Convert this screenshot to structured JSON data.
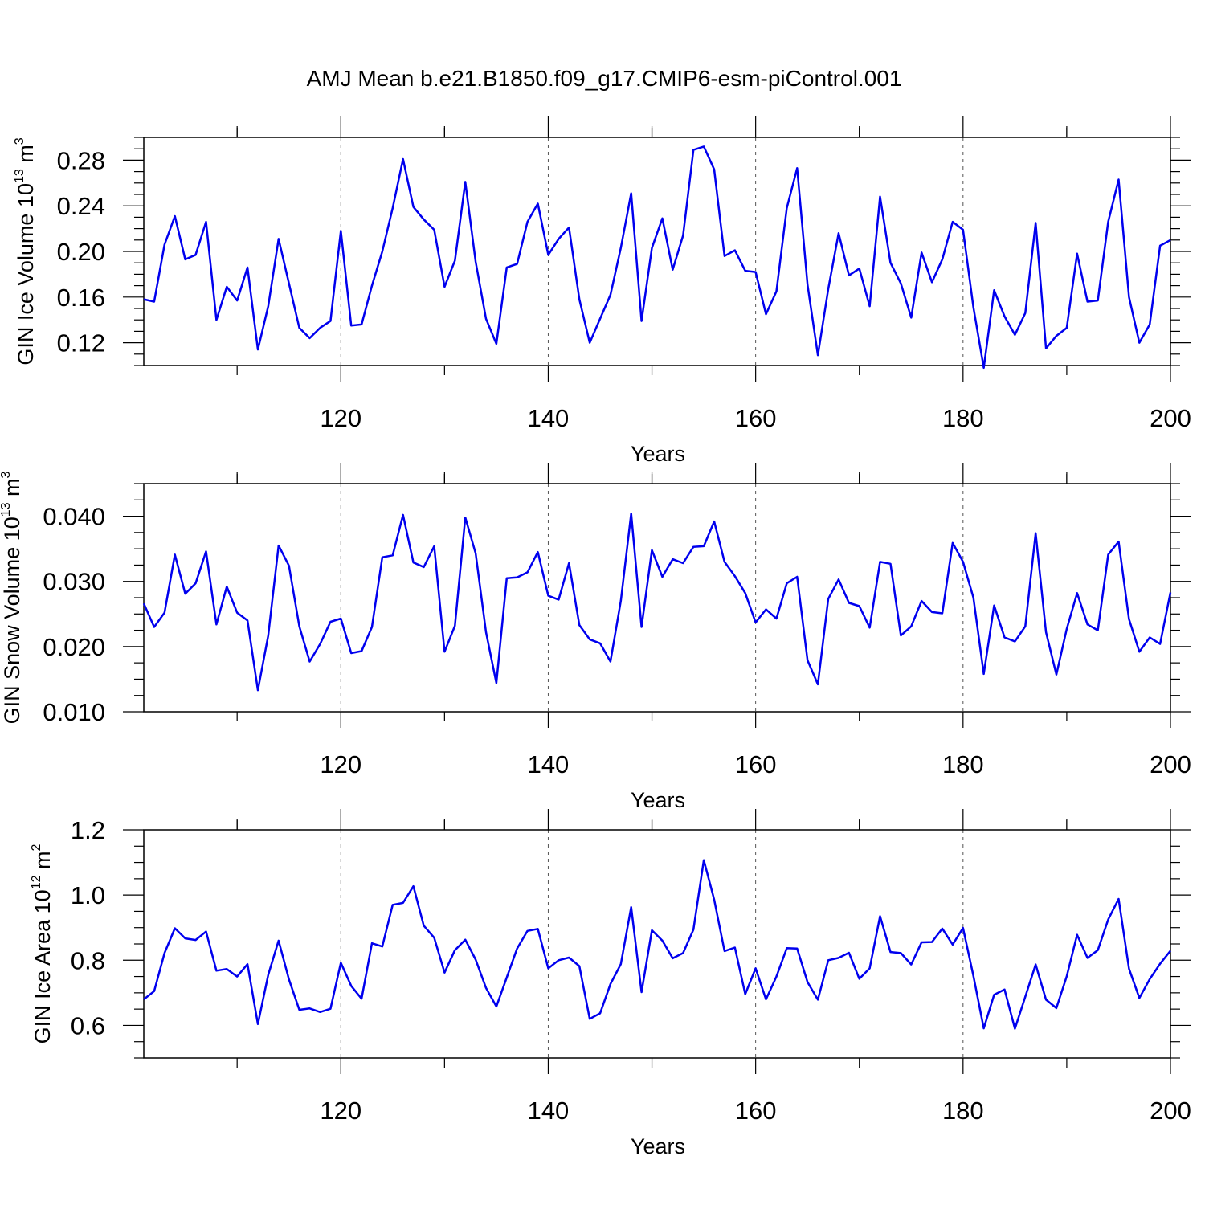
{
  "title": "AMJ Mean b.e21.B1850.f09_g17.CMIP6-esm-piControl.001",
  "line_color": "#0000ee",
  "chart_data": [
    {
      "type": "line",
      "ylabel": "GIN Ice Volume 10",
      "ylabel_sup": "13",
      "ylabel_unit": "m",
      "ylabel_unit_sup": "3",
      "xlabel": "Years",
      "xlim": [
        101,
        200
      ],
      "ylim": [
        0.1,
        0.3
      ],
      "x_ticks": [
        120,
        140,
        160,
        180,
        200
      ],
      "x_tick_labels": [
        "120",
        "140",
        "160",
        "180",
        "200"
      ],
      "y_ticks": [
        0.12,
        0.16,
        0.2,
        0.24,
        0.28
      ],
      "y_tick_labels": [
        "0.12",
        "0.16",
        "0.20",
        "0.24",
        "0.28"
      ],
      "grid": "vertical-dashed",
      "series": [
        {
          "values": [
            0.158,
            0.156,
            0.206,
            0.231,
            0.193,
            0.197,
            0.226,
            0.14,
            0.169,
            0.157,
            0.186,
            0.114,
            0.152,
            0.211,
            0.172,
            0.133,
            0.124,
            0.133,
            0.139,
            0.218,
            0.135,
            0.136,
            0.17,
            0.2,
            0.238,
            0.281,
            0.239,
            0.228,
            0.219,
            0.169,
            0.192,
            0.261,
            0.191,
            0.141,
            0.119,
            0.186,
            0.189,
            0.226,
            0.242,
            0.197,
            0.211,
            0.221,
            0.158,
            0.12,
            0.141,
            0.162,
            0.203,
            0.251,
            0.139,
            0.203,
            0.229,
            0.184,
            0.214,
            0.289,
            0.292,
            0.272,
            0.196,
            0.201,
            0.183,
            0.182,
            0.145,
            0.165,
            0.238,
            0.273,
            0.171,
            0.109,
            0.167,
            0.216,
            0.179,
            0.185,
            0.152,
            0.248,
            0.19,
            0.172,
            0.142,
            0.199,
            0.173,
            0.193,
            0.226,
            0.219,
            0.151,
            0.098,
            0.166,
            0.143,
            0.127,
            0.146,
            0.225,
            0.115,
            0.126,
            0.133,
            0.198,
            0.156,
            0.157,
            0.226,
            0.263,
            0.16,
            0.12,
            0.136,
            0.205,
            0.21
          ]
        }
      ]
    },
    {
      "type": "line",
      "ylabel": "GIN Snow Volume 10",
      "ylabel_sup": "13",
      "ylabel_unit": "m",
      "ylabel_unit_sup": "3",
      "xlabel": "Years",
      "xlim": [
        101,
        200
      ],
      "ylim": [
        0.01,
        0.045
      ],
      "x_ticks": [
        120,
        140,
        160,
        180,
        200
      ],
      "x_tick_labels": [
        "120",
        "140",
        "160",
        "180",
        "200"
      ],
      "y_ticks": [
        0.01,
        0.02,
        0.03,
        0.04
      ],
      "y_tick_labels": [
        "0.010",
        "0.020",
        "0.030",
        "0.040"
      ],
      "grid": "vertical-dashed",
      "series": [
        {
          "values": [
            0.0266,
            0.023,
            0.0252,
            0.0341,
            0.0281,
            0.0297,
            0.0346,
            0.0234,
            0.0292,
            0.0252,
            0.024,
            0.0133,
            0.0217,
            0.0355,
            0.0324,
            0.0231,
            0.0177,
            0.0204,
            0.0238,
            0.0243,
            0.019,
            0.0193,
            0.023,
            0.0337,
            0.034,
            0.0402,
            0.0329,
            0.0322,
            0.0354,
            0.0192,
            0.0232,
            0.0398,
            0.0343,
            0.0222,
            0.0144,
            0.0305,
            0.0306,
            0.0314,
            0.0345,
            0.0278,
            0.0272,
            0.0328,
            0.0233,
            0.0211,
            0.0205,
            0.0177,
            0.027,
            0.0404,
            0.023,
            0.0348,
            0.0307,
            0.0334,
            0.0328,
            0.0353,
            0.0354,
            0.0392,
            0.033,
            0.0308,
            0.0282,
            0.0237,
            0.0257,
            0.0243,
            0.0297,
            0.0307,
            0.0179,
            0.0142,
            0.0273,
            0.0303,
            0.0267,
            0.0262,
            0.0229,
            0.033,
            0.0327,
            0.0217,
            0.0231,
            0.027,
            0.0253,
            0.0251,
            0.0359,
            0.033,
            0.0275,
            0.0158,
            0.0263,
            0.0214,
            0.0208,
            0.0231,
            0.0374,
            0.0222,
            0.0157,
            0.0227,
            0.0282,
            0.0234,
            0.0225,
            0.0341,
            0.0361,
            0.0242,
            0.0192,
            0.0214,
            0.0204,
            0.0283
          ]
        }
      ]
    },
    {
      "type": "line",
      "ylabel": "GIN Ice Area 10",
      "ylabel_sup": "12",
      "ylabel_unit": "m",
      "ylabel_unit_sup": "2",
      "xlabel": "Years",
      "xlim": [
        101,
        200
      ],
      "ylim": [
        0.5,
        1.2
      ],
      "x_ticks": [
        120,
        140,
        160,
        180,
        200
      ],
      "x_tick_labels": [
        "120",
        "140",
        "160",
        "180",
        "200"
      ],
      "y_ticks": [
        0.6,
        0.8,
        1.0,
        1.2
      ],
      "y_tick_labels": [
        "0.6",
        "0.8",
        "1.0",
        "1.2"
      ],
      "grid": "vertical-dashed",
      "series": [
        {
          "values": [
            0.68,
            0.705,
            0.822,
            0.898,
            0.867,
            0.862,
            0.888,
            0.768,
            0.773,
            0.75,
            0.788,
            0.604,
            0.755,
            0.86,
            0.741,
            0.648,
            0.652,
            0.641,
            0.651,
            0.792,
            0.721,
            0.682,
            0.852,
            0.842,
            0.97,
            0.976,
            1.027,
            0.906,
            0.869,
            0.762,
            0.831,
            0.863,
            0.802,
            0.715,
            0.658,
            0.747,
            0.836,
            0.89,
            0.896,
            0.775,
            0.8,
            0.808,
            0.782,
            0.62,
            0.637,
            0.727,
            0.788,
            0.963,
            0.702,
            0.892,
            0.86,
            0.806,
            0.822,
            0.894,
            1.107,
            0.986,
            0.828,
            0.839,
            0.696,
            0.775,
            0.68,
            0.75,
            0.837,
            0.836,
            0.733,
            0.679,
            0.8,
            0.807,
            0.823,
            0.743,
            0.775,
            0.935,
            0.825,
            0.822,
            0.787,
            0.855,
            0.856,
            0.897,
            0.848,
            0.899,
            0.752,
            0.591,
            0.694,
            0.71,
            0.59,
            0.688,
            0.787,
            0.679,
            0.653,
            0.751,
            0.878,
            0.807,
            0.831,
            0.925,
            0.988,
            0.774,
            0.684,
            0.742,
            0.789,
            0.829
          ]
        }
      ]
    }
  ]
}
